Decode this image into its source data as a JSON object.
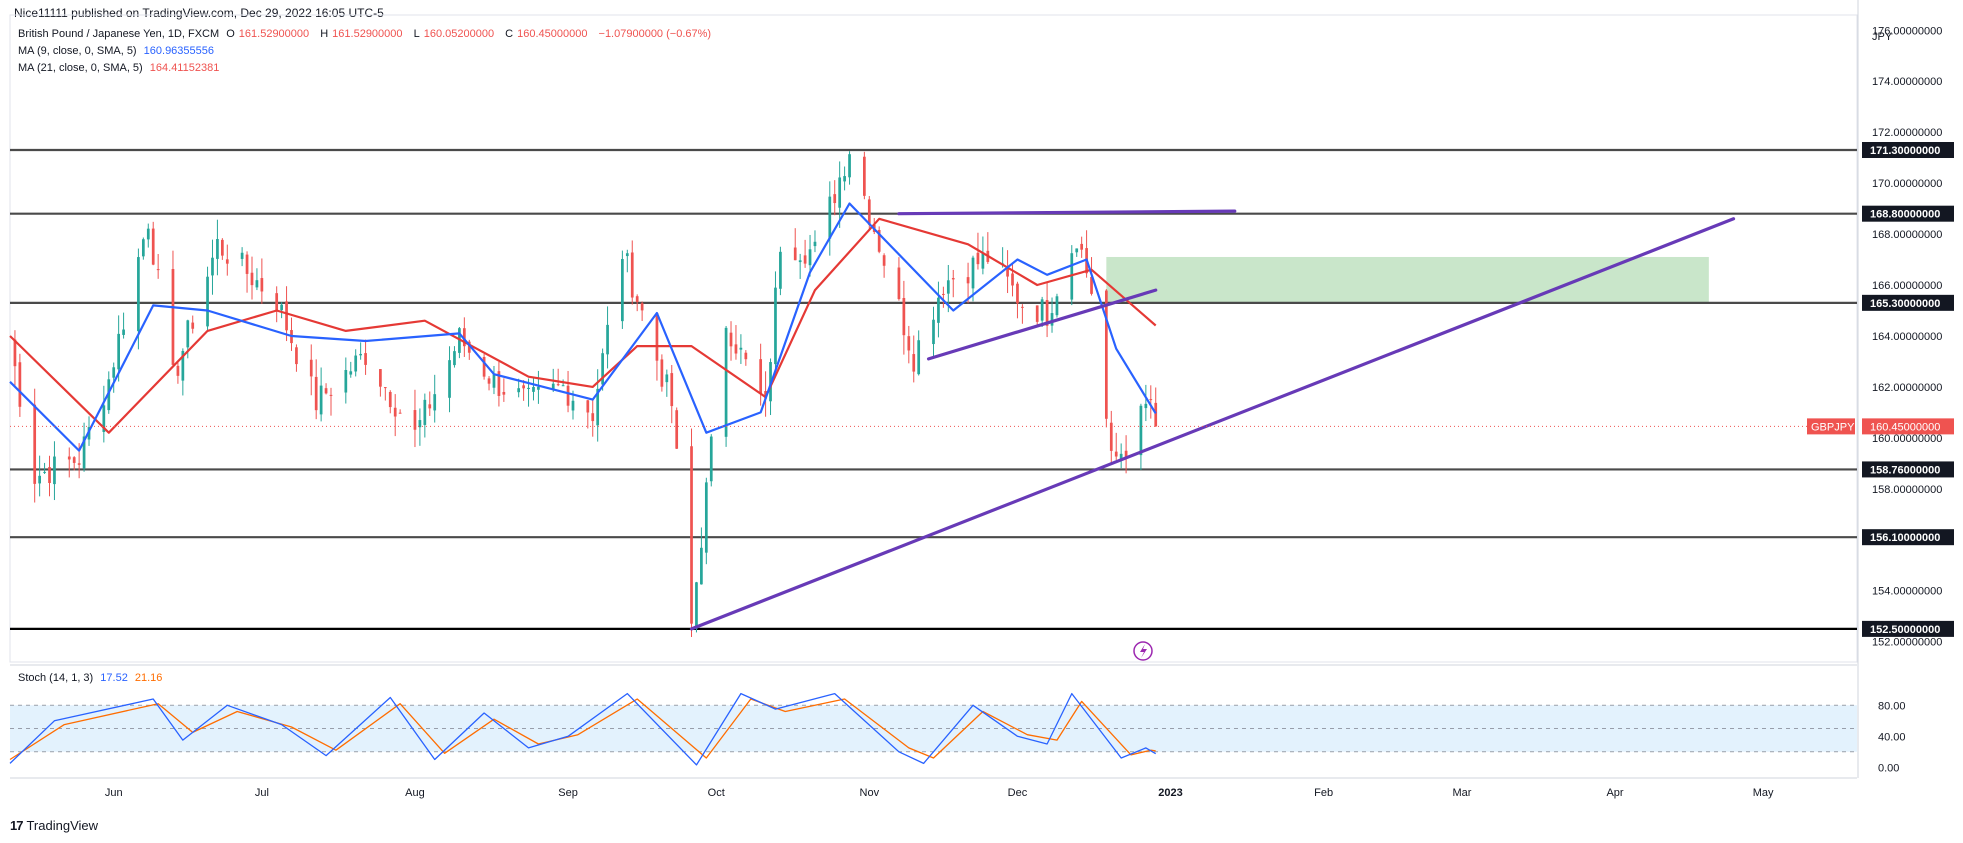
{
  "header": {
    "published": "Nice11111 published on TradingView.com, Dec 29, 2022 16:05 UTC-5"
  },
  "legend": {
    "symbol": "British Pound / Japanese Yen, 1D, FXCM",
    "open_label": "O",
    "open": "161.52900000",
    "high_label": "H",
    "high": "161.52900000",
    "low_label": "L",
    "low": "160.05200000",
    "close_label": "C",
    "close": "160.45000000",
    "change": "−1.07900000 (−0.67%)",
    "ma9_label": "MA (9, close, 0, SMA, 5)",
    "ma9_value": "160.96355556",
    "ma21_label": "MA (21, close, 0, SMA, 5)",
    "ma21_value": "164.41152381",
    "stoch_label": "Stoch (14, 1, 3)",
    "stoch_k": "17.52",
    "stoch_d": "21.16"
  },
  "colors": {
    "up": "#26a69a",
    "down": "#ef5350",
    "ma9": "#2962ff",
    "ma21": "#e53935",
    "trend": "#673ab7",
    "zone": "#a5d6a7",
    "level": "#4a4a4a",
    "stoch_k": "#2962ff",
    "stoch_d": "#ff6d00",
    "stoch_band": "#e3f2fd"
  },
  "price_axis": {
    "currency": "JPY",
    "ticks": [
      "152.00000000",
      "154.00000000",
      "156.00000000",
      "158.00000000",
      "160.00000000",
      "162.00000000",
      "164.00000000",
      "166.00000000",
      "168.00000000",
      "170.00000000",
      "172.00000000",
      "174.00000000",
      "176.00000000"
    ]
  },
  "time_axis": {
    "ticks": [
      "Jun",
      "Jul",
      "Aug",
      "Sep",
      "Oct",
      "Nov",
      "Dec",
      "2023",
      "Feb",
      "Mar",
      "Apr",
      "May"
    ]
  },
  "stoch_axis": {
    "ticks": [
      "80.00",
      "40.00",
      "0.00"
    ]
  },
  "symbol_tag": {
    "label": "GBPJPY",
    "price": "160.45000000"
  },
  "brand": "TradingView",
  "chart_data": {
    "type": "candlestick",
    "title": "British Pound / Japanese Yen, 1D, FXCM",
    "x_range": [
      "2022-05-11",
      "2023-05-20"
    ],
    "y_range": [
      151.2,
      176.6
    ],
    "horizontal_levels": [
      {
        "value": 171.3,
        "label": "171.30000000"
      },
      {
        "value": 168.8,
        "label": "168.80000000"
      },
      {
        "value": 165.3,
        "label": "165.30000000"
      },
      {
        "value": 158.76,
        "label": "158.76000000"
      },
      {
        "value": 156.1,
        "label": "156.10000000"
      },
      {
        "value": 152.5,
        "label": "152.50000000"
      }
    ],
    "trendlines": [
      {
        "from": [
          "2022-09-26",
          152.5
        ],
        "to": [
          "2023-04-25",
          168.6
        ]
      },
      {
        "from": [
          "2022-11-13",
          163.1
        ],
        "to": [
          "2022-12-29",
          165.8
        ]
      },
      {
        "from": [
          "2022-11-07",
          168.8
        ],
        "to": [
          "2023-01-14",
          168.9
        ]
      }
    ],
    "zone": {
      "from": "2022-12-19",
      "to": "2023-04-20",
      "low": 165.3,
      "high": 167.1
    },
    "anchors": [
      [
        "2022-05-11",
        163.8
      ],
      [
        "2022-05-16",
        158.5
      ],
      [
        "2022-05-25",
        159.2
      ],
      [
        "2022-05-31",
        162.3
      ],
      [
        "2022-06-08",
        168.6
      ],
      [
        "2022-06-13",
        162.3
      ],
      [
        "2022-06-22",
        167.6
      ],
      [
        "2022-07-04",
        165.4
      ],
      [
        "2022-07-12",
        161.4
      ],
      [
        "2022-07-22",
        163.3
      ],
      [
        "2022-08-01",
        160.1
      ],
      [
        "2022-08-10",
        163.9
      ],
      [
        "2022-08-17",
        162.2
      ],
      [
        "2022-08-24",
        161.4
      ],
      [
        "2022-08-31",
        162.0
      ],
      [
        "2022-09-06",
        161.0
      ],
      [
        "2022-09-12",
        167.3
      ],
      [
        "2022-09-22",
        161.3
      ],
      [
        "2022-09-26",
        152.6
      ],
      [
        "2022-09-29",
        157.9
      ],
      [
        "2022-10-03",
        164.6
      ],
      [
        "2022-10-11",
        161.1
      ],
      [
        "2022-10-14",
        167.7
      ],
      [
        "2022-10-21",
        167.3
      ],
      [
        "2022-10-28",
        171.4
      ],
      [
        "2022-11-04",
        167.0
      ],
      [
        "2022-11-10",
        163.2
      ],
      [
        "2022-11-16",
        166.1
      ],
      [
        "2022-11-25",
        167.1
      ],
      [
        "2022-12-02",
        165.3
      ],
      [
        "2022-12-07",
        164.9
      ],
      [
        "2022-12-13",
        168.0
      ],
      [
        "2022-12-16",
        165.8
      ],
      [
        "2022-12-20",
        159.0
      ],
      [
        "2022-12-23",
        159.7
      ],
      [
        "2022-12-28",
        161.5
      ],
      [
        "2022-12-29",
        160.45
      ]
    ],
    "ma9_anchors": [
      [
        "2022-05-11",
        162.2
      ],
      [
        "2022-05-25",
        159.5
      ],
      [
        "2022-06-09",
        165.2
      ],
      [
        "2022-06-20",
        165.0
      ],
      [
        "2022-07-07",
        164.0
      ],
      [
        "2022-07-22",
        163.8
      ],
      [
        "2022-08-10",
        164.1
      ],
      [
        "2022-08-17",
        162.5
      ],
      [
        "2022-09-06",
        161.5
      ],
      [
        "2022-09-19",
        164.9
      ],
      [
        "2022-09-29",
        160.2
      ],
      [
        "2022-10-10",
        161.0
      ],
      [
        "2022-10-20",
        166.5
      ],
      [
        "2022-10-28",
        169.2
      ],
      [
        "2022-11-08",
        167.0
      ],
      [
        "2022-11-18",
        165.0
      ],
      [
        "2022-12-01",
        167.0
      ],
      [
        "2022-12-07",
        166.4
      ],
      [
        "2022-12-15",
        167.0
      ],
      [
        "2022-12-21",
        163.5
      ],
      [
        "2022-12-29",
        160.96
      ]
    ],
    "ma21_anchors": [
      [
        "2022-05-11",
        164.0
      ],
      [
        "2022-05-31",
        160.2
      ],
      [
        "2022-06-20",
        164.2
      ],
      [
        "2022-07-04",
        165.0
      ],
      [
        "2022-07-18",
        164.2
      ],
      [
        "2022-08-03",
        164.6
      ],
      [
        "2022-08-24",
        162.4
      ],
      [
        "2022-09-06",
        162.0
      ],
      [
        "2022-09-15",
        163.6
      ],
      [
        "2022-09-26",
        163.6
      ],
      [
        "2022-10-11",
        161.6
      ],
      [
        "2022-10-21",
        165.8
      ],
      [
        "2022-11-03",
        168.6
      ],
      [
        "2022-11-21",
        167.6
      ],
      [
        "2022-12-05",
        166.0
      ],
      [
        "2022-12-16",
        166.6
      ],
      [
        "2022-12-29",
        164.41
      ]
    ],
    "stoch_k": [
      [
        "2022-05-11",
        5
      ],
      [
        "2022-05-20",
        60
      ],
      [
        "2022-06-09",
        88
      ],
      [
        "2022-06-15",
        35
      ],
      [
        "2022-06-24",
        80
      ],
      [
        "2022-07-05",
        55
      ],
      [
        "2022-07-14",
        15
      ],
      [
        "2022-07-27",
        90
      ],
      [
        "2022-08-05",
        10
      ],
      [
        "2022-08-15",
        70
      ],
      [
        "2022-08-24",
        25
      ],
      [
        "2022-09-01",
        40
      ],
      [
        "2022-09-13",
        95
      ],
      [
        "2022-09-27",
        3
      ],
      [
        "2022-10-06",
        95
      ],
      [
        "2022-10-13",
        75
      ],
      [
        "2022-10-25",
        95
      ],
      [
        "2022-11-07",
        20
      ],
      [
        "2022-11-12",
        5
      ],
      [
        "2022-11-22",
        80
      ],
      [
        "2022-12-01",
        40
      ],
      [
        "2022-12-07",
        30
      ],
      [
        "2022-12-12",
        95
      ],
      [
        "2022-12-22",
        12
      ],
      [
        "2022-12-27",
        25
      ],
      [
        "2022-12-29",
        17.52
      ]
    ],
    "stoch_d": [
      [
        "2022-05-11",
        10
      ],
      [
        "2022-05-22",
        55
      ],
      [
        "2022-06-10",
        82
      ],
      [
        "2022-06-17",
        45
      ],
      [
        "2022-06-26",
        72
      ],
      [
        "2022-07-07",
        52
      ],
      [
        "2022-07-16",
        22
      ],
      [
        "2022-07-29",
        82
      ],
      [
        "2022-08-07",
        18
      ],
      [
        "2022-08-17",
        62
      ],
      [
        "2022-08-26",
        30
      ],
      [
        "2022-09-03",
        42
      ],
      [
        "2022-09-15",
        88
      ],
      [
        "2022-09-29",
        12
      ],
      [
        "2022-10-08",
        88
      ],
      [
        "2022-10-15",
        72
      ],
      [
        "2022-10-27",
        88
      ],
      [
        "2022-11-09",
        25
      ],
      [
        "2022-11-14",
        12
      ],
      [
        "2022-11-24",
        72
      ],
      [
        "2022-12-03",
        42
      ],
      [
        "2022-12-09",
        35
      ],
      [
        "2022-12-14",
        85
      ],
      [
        "2022-12-24",
        16
      ],
      [
        "2022-12-28",
        22
      ],
      [
        "2022-12-29",
        21.16
      ]
    ],
    "stoch_range": [
      -10,
      110
    ],
    "stoch_bands": [
      80,
      50,
      20
    ]
  }
}
